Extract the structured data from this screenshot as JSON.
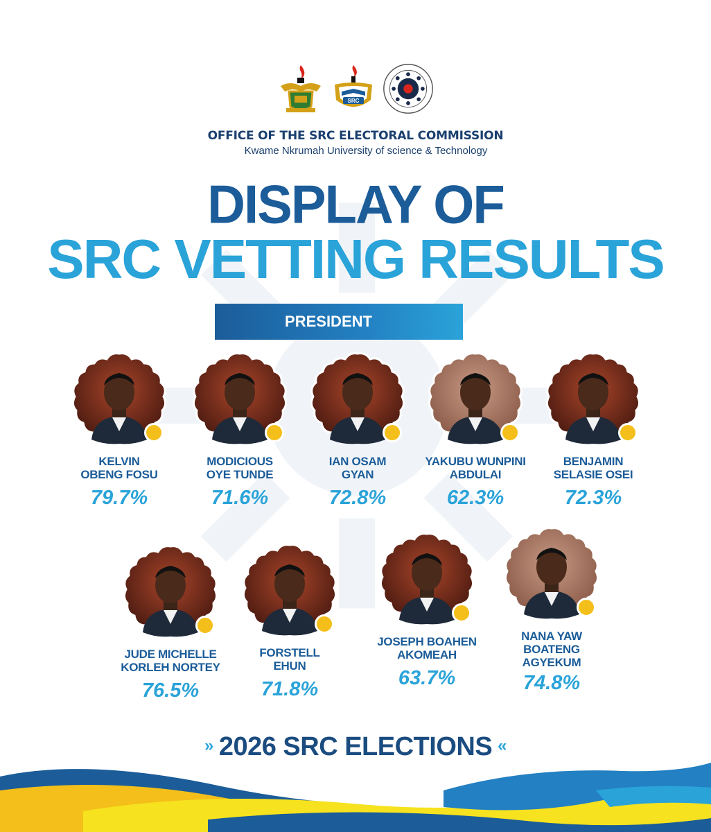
{
  "header": {
    "office": "OFFICE OF THE SRC ELECTORAL COMMISSION",
    "university": "Kwame Nkrumah University of science & Technology",
    "logos": [
      "knust-crest-logo",
      "src-logo",
      "src-electoral-commission-seal"
    ],
    "seal_text_top": "SRC ELECTORAL COMMISSION",
    "seal_text_bottom": "KNUST",
    "src_logo_text": "SRC"
  },
  "title": {
    "line1": "DISPLAY OF",
    "line2": "SRC VETTING RESULTS"
  },
  "position": "PRESIDENT",
  "candidates": [
    {
      "name": "KELVIN\nOBENG FOSU",
      "score": "79.7%"
    },
    {
      "name": "MODICIOUS\nOYE TUNDE",
      "score": "71.6%"
    },
    {
      "name": "IAN OSAM\nGYAN",
      "score": "72.8%"
    },
    {
      "name": "YAKUBU WUNPINI\nABDULAI",
      "score": "62.3%"
    },
    {
      "name": "BENJAMIN\nSELASIE OSEI",
      "score": "72.3%"
    },
    {
      "name": "JUDE MICHELLE\nKORLEH NORTEY",
      "score": "76.5%"
    },
    {
      "name": "FORSTELL\nEHUN",
      "score": "71.8%"
    },
    {
      "name": "JOSEPH BOAHEN\nAKOMEAH",
      "score": "63.7%"
    },
    {
      "name": "NANA YAW\nBOATENG\nAGYEKUM",
      "score": "74.8%"
    }
  ],
  "footer": {
    "text": "2026 SRC ELECTIONS",
    "left_chevron": "»",
    "right_chevron": "«"
  },
  "colors": {
    "dark_blue": "#1b5c99",
    "light_blue": "#2aa3d9",
    "accent_yellow": "#f4bf1a",
    "portrait_bg": "#7a2e1a"
  }
}
